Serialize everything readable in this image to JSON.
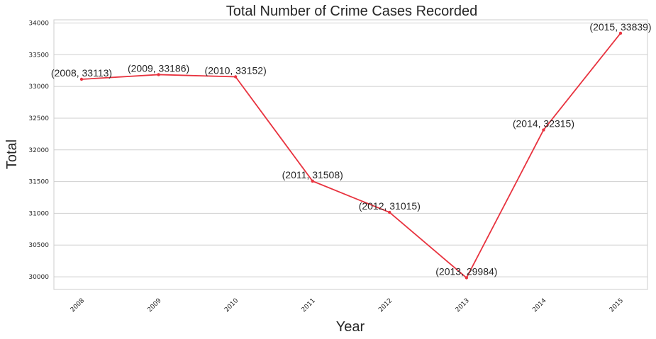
{
  "chart_data": {
    "type": "line",
    "title": "Total Number of Crime Cases Recorded",
    "xlabel": "Year",
    "ylabel": "Total",
    "x": [
      "2008",
      "2009",
      "2010",
      "2011",
      "2012",
      "2013",
      "2014",
      "2015"
    ],
    "series": [
      {
        "values": [
          33113,
          33186,
          33152,
          31508,
          31015,
          29984,
          32315,
          33839
        ]
      }
    ],
    "data_labels": [
      "(2008, 33113)",
      "(2009, 33186)",
      "(2010, 33152)",
      "(2011, 31508)",
      "(2012, 31015)",
      "(2013, 29984)",
      "(2014, 32315)",
      "(2015, 33839)"
    ],
    "yticks": [
      30000,
      30500,
      31000,
      31500,
      32000,
      32500,
      33000,
      33500,
      34000
    ],
    "ylim": [
      29800,
      34050
    ],
    "grid": "horizontal",
    "colors": {
      "line": "#e8333f",
      "grid": "#cfcfcf",
      "frame": "#cccccc",
      "text": "#262626"
    }
  }
}
